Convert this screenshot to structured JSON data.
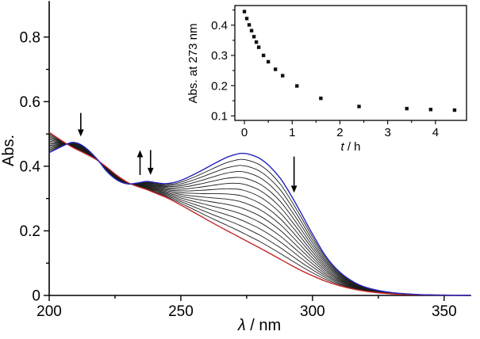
{
  "chart_data": [
    {
      "id": "main-spectra",
      "type": "line",
      "title": "",
      "xlabel_symbol": "λ",
      "xlabel_rest": " / nm",
      "ylabel": "Abs.",
      "xlim": [
        200,
        360
      ],
      "ylim": [
        0,
        0.9
      ],
      "xticks": [
        200,
        250,
        300,
        350
      ],
      "xtick_labels": [
        "200",
        "250",
        "300",
        "350"
      ],
      "yticks": [
        0,
        0.2,
        0.4,
        0.6,
        0.8
      ],
      "ytick_labels": [
        "0",
        "0.2",
        "0.4",
        "0.6",
        "0.8"
      ],
      "x_minor_ticks": [
        225,
        275,
        325
      ],
      "y_minor_ticks": [
        0.1,
        0.3,
        0.5,
        0.7
      ],
      "grid": false,
      "legend": "none",
      "wavelength_nm": [
        200,
        205,
        209,
        213,
        218,
        222,
        226,
        230,
        234,
        237,
        240,
        244,
        248,
        252,
        257,
        262,
        267,
        271,
        273,
        276,
        280,
        284,
        288,
        292,
        296,
        300,
        305,
        310,
        316,
        322,
        330,
        340,
        350,
        360
      ],
      "spectra": {
        "count": 15,
        "note": "family of time-resolved UV-vis spectra evolving from initial (blue) to final (red); curves interpolate between the two envelopes",
        "initial_abs": [
          0.442,
          0.462,
          0.474,
          0.462,
          0.424,
          0.383,
          0.356,
          0.345,
          0.349,
          0.353,
          0.35,
          0.346,
          0.351,
          0.363,
          0.383,
          0.405,
          0.426,
          0.437,
          0.44,
          0.437,
          0.424,
          0.398,
          0.36,
          0.308,
          0.25,
          0.19,
          0.122,
          0.075,
          0.04,
          0.021,
          0.009,
          0.003,
          0.001,
          0.0
        ],
        "final_abs": [
          0.505,
          0.478,
          0.458,
          0.442,
          0.42,
          0.396,
          0.37,
          0.349,
          0.336,
          0.328,
          0.318,
          0.305,
          0.289,
          0.271,
          0.248,
          0.225,
          0.203,
          0.186,
          0.177,
          0.164,
          0.147,
          0.129,
          0.111,
          0.093,
          0.076,
          0.061,
          0.044,
          0.031,
          0.019,
          0.011,
          0.005,
          0.002,
          0.001,
          0.0
        ],
        "initial_color": "#2525c0",
        "final_color": "#c42525",
        "intermediate_color": "#1c1c1c"
      },
      "arrows": [
        {
          "x": 212,
          "y_from": 0.565,
          "y_to": 0.492,
          "direction": "down"
        },
        {
          "x": 234.5,
          "y_from": 0.373,
          "y_to": 0.45,
          "direction": "up"
        },
        {
          "x": 238.5,
          "y_from": 0.45,
          "y_to": 0.373,
          "direction": "down"
        },
        {
          "x": 293,
          "y_from": 0.43,
          "y_to": 0.318,
          "direction": "down"
        }
      ]
    },
    {
      "id": "inset-kinetics",
      "type": "scatter",
      "title": "",
      "xlabel_symbol": "t",
      "xlabel_rest": " / h",
      "ylabel": "Abs. at 273 nm",
      "xlim": [
        -0.2,
        4.65
      ],
      "ylim": [
        0.085,
        0.465
      ],
      "xticks": [
        0,
        1,
        2,
        3,
        4
      ],
      "xtick_labels": [
        "0",
        "1",
        "2",
        "3",
        "4"
      ],
      "yticks": [
        0.1,
        0.2,
        0.3,
        0.4
      ],
      "ytick_labels": [
        "0.1",
        "0.2",
        "0.3",
        "0.4"
      ],
      "x_minor_ticks": [
        0.5,
        1.5,
        2.5,
        3.5
      ],
      "y_minor_ticks": [
        0.15,
        0.25,
        0.35,
        0.45
      ],
      "grid": false,
      "legend": "none",
      "marker": "square",
      "marker_color": "#111111",
      "points": [
        [
          0.0,
          0.445
        ],
        [
          0.05,
          0.422
        ],
        [
          0.1,
          0.401
        ],
        [
          0.15,
          0.382
        ],
        [
          0.2,
          0.362
        ],
        [
          0.25,
          0.344
        ],
        [
          0.3,
          0.327
        ],
        [
          0.4,
          0.3
        ],
        [
          0.5,
          0.279
        ],
        [
          0.65,
          0.254
        ],
        [
          0.8,
          0.233
        ],
        [
          1.1,
          0.199
        ],
        [
          1.6,
          0.158
        ],
        [
          2.4,
          0.131
        ],
        [
          3.4,
          0.124
        ],
        [
          3.9,
          0.121
        ],
        [
          4.4,
          0.119
        ]
      ]
    }
  ]
}
